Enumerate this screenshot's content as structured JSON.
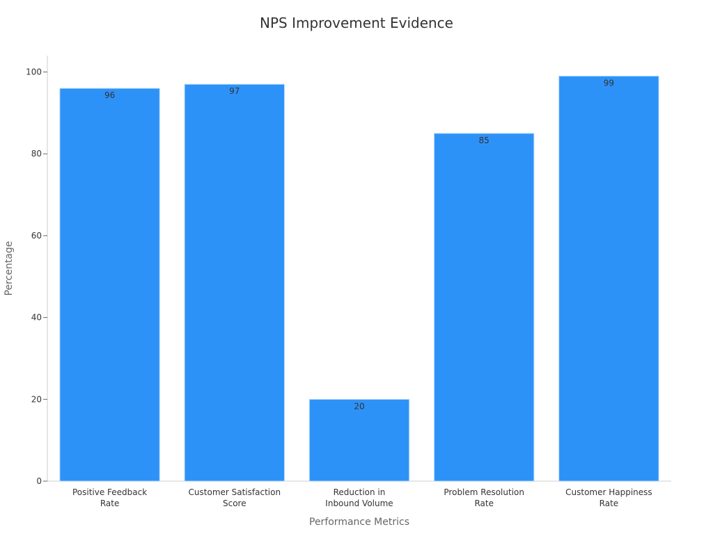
{
  "chart_data": {
    "type": "bar",
    "title": "NPS Improvement Evidence",
    "xlabel": "Performance Metrics",
    "ylabel": "Percentage",
    "categories": [
      "Positive Feedback\nRate",
      "Customer Satisfaction\nScore",
      "Reduction in\nInbound Volume",
      "Problem Resolution\nRate",
      "Customer Happiness\nRate"
    ],
    "values": [
      96,
      97,
      20,
      85,
      99
    ],
    "data_labels": [
      "96",
      "97",
      "20",
      "85",
      "99"
    ],
    "ylim": [
      0,
      104
    ],
    "yticks": [
      0,
      20,
      40,
      60,
      80,
      100
    ],
    "ytick_labels": [
      "0",
      "20",
      "40",
      "60",
      "80",
      "100"
    ],
    "grid": false,
    "legend": "none",
    "colors": {
      "bar": "#2d92f8",
      "bar_edge": "#b8d8fb"
    }
  }
}
